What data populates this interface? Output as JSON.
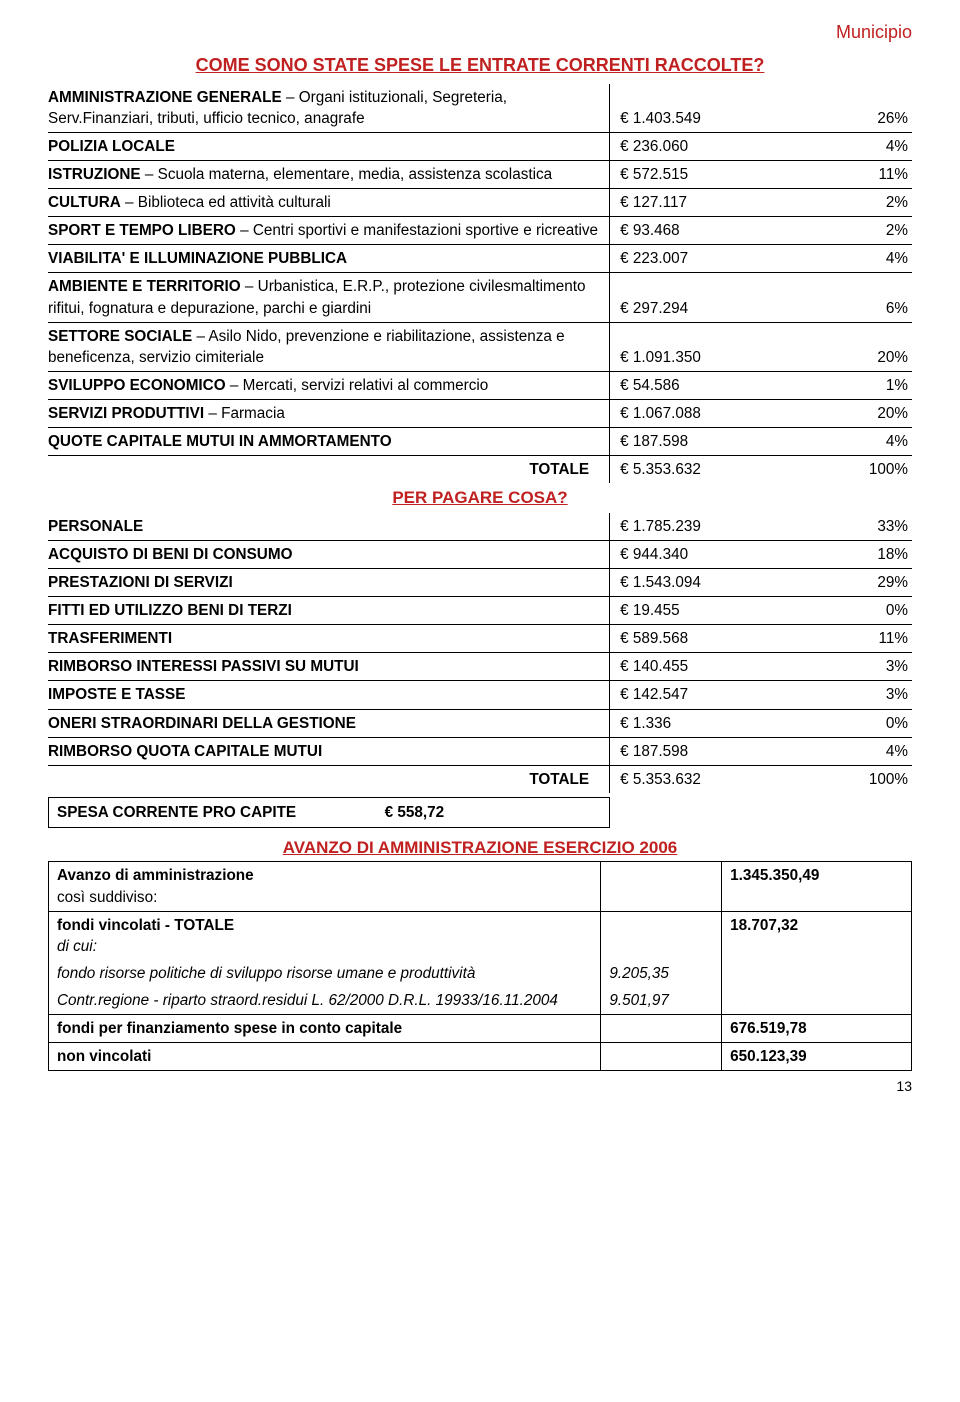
{
  "header_label": "Municipio",
  "section1_title": "COME SONO STATE SPESE LE ENTRATE CORRENTI RACCOLTE?",
  "rows1": [
    {
      "bold": "AMMINISTRAZIONE GENERALE",
      "rest": " – Organi istituzionali, Segreteria, Serv.Finanziari, tributi, ufficio tecnico, anagrafe",
      "amt": "€ 1.403.549",
      "pct": "26%"
    },
    {
      "bold": "POLIZIA LOCALE",
      "rest": "",
      "amt": "€ 236.060",
      "pct": "4%"
    },
    {
      "bold": "ISTRUZIONE",
      "rest": " – Scuola materna, elementare, media, assistenza scolastica",
      "amt": "€ 572.515",
      "pct": "11%"
    },
    {
      "bold": "CULTURA",
      "rest": " – Biblioteca ed attività culturali",
      "amt": "€ 127.117",
      "pct": "2%"
    },
    {
      "bold": "SPORT E TEMPO LIBERO",
      "rest": " – Centri sportivi e manifestazioni sportive e ricreative",
      "amt": "€ 93.468",
      "pct": "2%"
    },
    {
      "bold": "VIABILITA' E ILLUMINAZIONE PUBBLICA",
      "rest": "",
      "amt": "€ 223.007",
      "pct": "4%"
    },
    {
      "bold": "AMBIENTE E TERRITORIO",
      "rest": " – Urbanistica, E.R.P., protezione civilesmaltimento rifitui, fognatura e depurazione, parchi e giardini",
      "amt": "€ 297.294",
      "pct": "6%"
    },
    {
      "bold": "SETTORE SOCIALE",
      "rest": " – Asilo Nido, prevenzione e riabilitazione, assistenza e beneficenza, servizio cimiteriale",
      "amt": "€ 1.091.350",
      "pct": "20%"
    },
    {
      "bold": "SVILUPPO ECONOMICO",
      "rest": " – Mercati, servizi relativi al commercio",
      "amt": "€ 54.586",
      "pct": "1%"
    },
    {
      "bold": "SERVIZI PRODUTTIVI",
      "rest": " – Farmacia",
      "amt": "€ 1.067.088",
      "pct": "20%"
    },
    {
      "bold": "QUOTE CAPITALE MUTUI IN AMMORTAMENTO",
      "rest": "",
      "amt": "€ 187.598",
      "pct": "4%"
    }
  ],
  "total1_label": "TOTALE",
  "total1_amt": "€ 5.353.632",
  "total1_pct": "100%",
  "section2_title": "PER PAGARE COSA?",
  "rows2": [
    {
      "bold": "PERSONALE",
      "amt": "€ 1.785.239",
      "pct": "33%"
    },
    {
      "bold": "ACQUISTO DI BENI DI CONSUMO",
      "amt": "€ 944.340",
      "pct": "18%"
    },
    {
      "bold": "PRESTAZIONI DI SERVIZI",
      "amt": "€ 1.543.094",
      "pct": "29%"
    },
    {
      "bold": "FITTI ED UTILIZZO BENI DI TERZI",
      "amt": "€ 19.455",
      "pct": "0%"
    },
    {
      "bold": "TRASFERIMENTI",
      "amt": "€ 589.568",
      "pct": "11%"
    },
    {
      "bold": "RIMBORSO INTERESSI PASSIVI SU MUTUI",
      "amt": "€ 140.455",
      "pct": "3%"
    },
    {
      "bold": "IMPOSTE E TASSE",
      "amt": "€ 142.547",
      "pct": "3%"
    },
    {
      "bold": "ONERI STRAORDINARI DELLA GESTIONE",
      "amt": "€ 1.336",
      "pct": "0%"
    },
    {
      "bold": "RIMBORSO QUOTA CAPITALE MUTUI",
      "amt": "€ 187.598",
      "pct": "4%"
    }
  ],
  "total2_label": "TOTALE",
  "total2_amt": "€ 5.353.632",
  "total2_pct": "100%",
  "procapite_label": "SPESA CORRENTE PRO CAPITE",
  "procapite_val": "€ 558,72",
  "avanzo_title": "AVANZO DI AMMINISTRAZIONE ESERCIZIO 2006",
  "avanzo": {
    "r1_bold": "Avanzo di amministrazione",
    "r1_sub": "così suddiviso:",
    "r1_val": "1.345.350,49",
    "r2_bold": "fondi vincolati - TOTALE",
    "r2_sub": "di cui:",
    "r2_val": "18.707,32",
    "r3_it": "fondo risorse politiche di sviluppo risorse umane e produttività",
    "r3_n": "9.205,35",
    "r4_it": "Contr.regione - riparto straord.residui L. 62/2000 D.R.L. 19933/16.11.2004",
    "r4_n": "9.501,97",
    "r5_bold": "fondi per finanziamento spese in conto capitale",
    "r5_val": "676.519,78",
    "r6_bold": "non vincolati",
    "r6_val": "650.123,39"
  },
  "page_num": "13"
}
